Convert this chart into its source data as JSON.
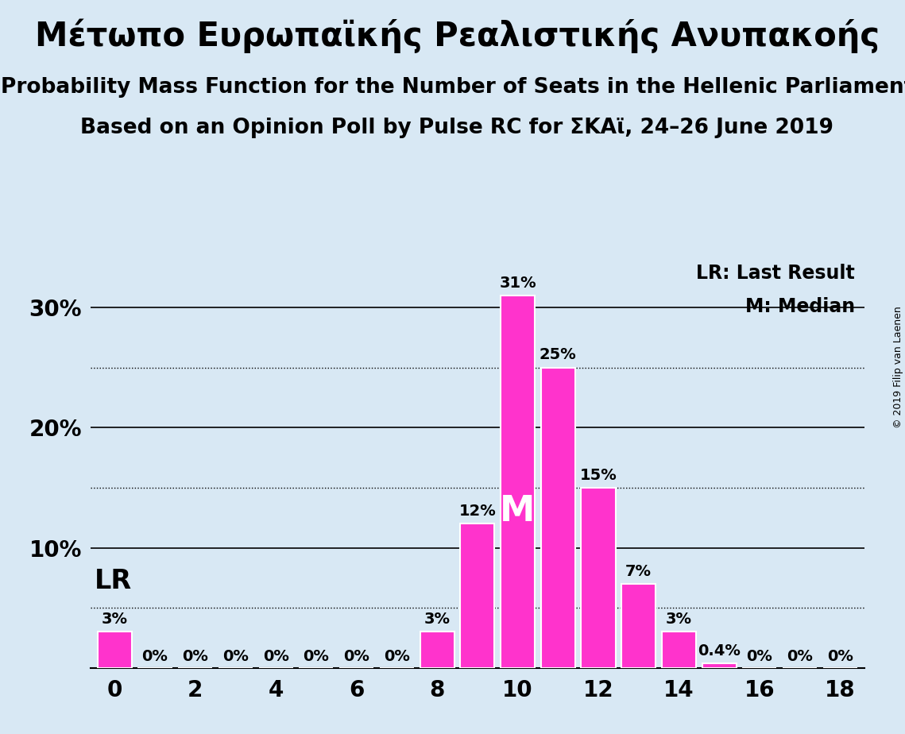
{
  "title_greek": "Μέτωπο Ευρωπαϊκής Ρεαλιστικής Ανυπακοής",
  "subtitle1": "Probability Mass Function for the Number of Seats in the Hellenic Parliament",
  "subtitle2": "Based on an Opinion Poll by Pulse RC for ΣΚΑϊ, 24–26 June 2019",
  "copyright": "© 2019 Filip van Laenen",
  "bar_color": "#FF33CC",
  "background_color": "#D8E8F4",
  "seats": [
    0,
    1,
    2,
    3,
    4,
    5,
    6,
    7,
    8,
    9,
    10,
    11,
    12,
    13,
    14,
    15,
    16,
    17,
    18
  ],
  "probabilities": [
    0.03,
    0.0,
    0.0,
    0.0,
    0.0,
    0.0,
    0.0,
    0.0,
    0.03,
    0.12,
    0.31,
    0.25,
    0.15,
    0.07,
    0.03,
    0.004,
    0.0,
    0.0,
    0.0
  ],
  "labels": [
    "3%",
    "0%",
    "0%",
    "0%",
    "0%",
    "0%",
    "0%",
    "0%",
    "3%",
    "12%",
    "31%",
    "25%",
    "15%",
    "7%",
    "3%",
    "0.4%",
    "0%",
    "0%",
    "0%"
  ],
  "median": 10,
  "last_result": 0,
  "ylim": [
    0,
    0.345
  ],
  "xlim": [
    -0.6,
    18.6
  ],
  "xticks": [
    0,
    2,
    4,
    6,
    8,
    10,
    12,
    14,
    16,
    18
  ],
  "solid_gridlines": [
    0.1,
    0.2,
    0.3
  ],
  "dotted_gridlines": [
    0.05,
    0.15,
    0.25
  ],
  "title_fontsize": 30,
  "subtitle_fontsize": 19,
  "label_fontsize": 14,
  "axis_fontsize": 20,
  "legend_fontsize": 17,
  "median_label_fontsize": 32,
  "lr_label_fontsize": 24,
  "copyright_fontsize": 9,
  "bar_width": 0.85
}
